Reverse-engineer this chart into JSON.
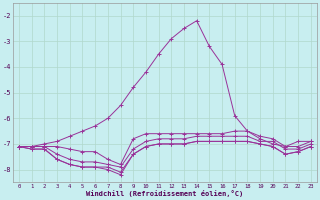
{
  "xlabel": "Windchill (Refroidissement éolien,°C)",
  "background_color": "#c8eef0",
  "grid_color": "#b0d8cc",
  "line_color": "#993399",
  "x": [
    0,
    1,
    2,
    3,
    4,
    5,
    6,
    7,
    8,
    9,
    10,
    11,
    12,
    13,
    14,
    15,
    16,
    17,
    18,
    19,
    20,
    21,
    22,
    23
  ],
  "series": [
    [
      -7.1,
      -7.1,
      -7.0,
      -6.9,
      -6.7,
      -6.5,
      -6.3,
      -6.0,
      -5.5,
      -4.8,
      -4.2,
      -3.5,
      -2.9,
      -2.5,
      -2.2,
      -3.2,
      -3.9,
      -5.9,
      -6.5,
      -6.8,
      -7.0,
      -7.1,
      -6.9,
      -6.9
    ],
    [
      -7.1,
      -7.1,
      -7.1,
      -7.1,
      -7.2,
      -7.3,
      -7.3,
      -7.6,
      -7.8,
      -6.8,
      -6.6,
      -6.6,
      -6.6,
      -6.6,
      -6.6,
      -6.6,
      -6.6,
      -6.5,
      -6.5,
      -6.7,
      -6.8,
      -7.1,
      -7.1,
      -6.9
    ],
    [
      -7.1,
      -7.1,
      -7.1,
      -7.4,
      -7.6,
      -7.7,
      -7.7,
      -7.8,
      -7.9,
      -7.2,
      -6.9,
      -6.8,
      -6.8,
      -6.8,
      -6.7,
      -6.7,
      -6.7,
      -6.7,
      -6.7,
      -6.9,
      -6.9,
      -7.2,
      -7.2,
      -7.0
    ],
    [
      -7.1,
      -7.2,
      -7.2,
      -7.6,
      -7.8,
      -7.9,
      -7.9,
      -7.9,
      -8.1,
      -7.4,
      -7.1,
      -7.0,
      -7.0,
      -7.0,
      -6.9,
      -6.9,
      -6.9,
      -6.9,
      -6.9,
      -7.0,
      -7.1,
      -7.4,
      -7.3,
      -7.1
    ],
    [
      -7.1,
      -7.2,
      -7.2,
      -7.6,
      -7.8,
      -7.9,
      -7.9,
      -8.0,
      -8.2,
      -7.4,
      -7.1,
      -7.0,
      -7.0,
      -7.0,
      -6.9,
      -6.9,
      -6.9,
      -6.9,
      -6.9,
      -7.0,
      -7.1,
      -7.4,
      -7.3,
      -7.1
    ]
  ],
  "ylim": [
    -8.5,
    -1.5
  ],
  "yticks": [
    -8,
    -7,
    -6,
    -5,
    -4,
    -3,
    -2
  ],
  "xlim": [
    -0.5,
    23.5
  ]
}
